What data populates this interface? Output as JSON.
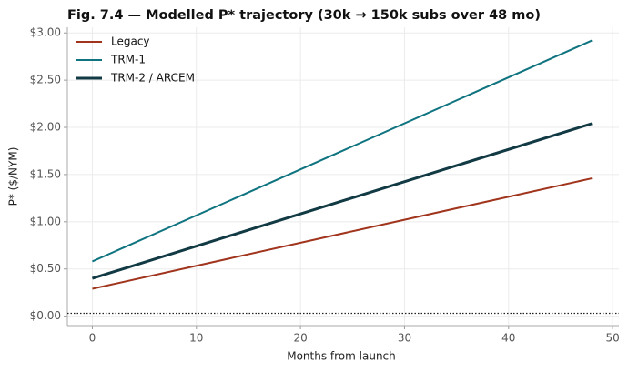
{
  "chart_data": {
    "type": "line",
    "title": "Fig. 7.4 — Modelled P* trajectory (30k → 150k subs over 48 mo)",
    "x_label": "Months from launch",
    "y_label": "P*  ($/NYM)",
    "x": [
      0,
      48
    ],
    "series": [
      {
        "name": "Legacy",
        "color": "#a0341c",
        "values": [
          0.29,
          1.46
        ]
      },
      {
        "name": "TRM-1",
        "color": "#0f7480",
        "values": [
          0.58,
          2.92
        ]
      },
      {
        "name": "TRM-2 / ARCEM",
        "color": "#123a44",
        "values": [
          0.4,
          2.04
        ]
      }
    ],
    "reference_line": 0.03,
    "xlim": [
      -2.4,
      50.6
    ],
    "ylim": [
      -0.1,
      3.06
    ],
    "xticks": [
      0,
      10,
      20,
      30,
      40,
      50
    ],
    "yticks": [
      {
        "value": 0,
        "label": "$0.00"
      },
      {
        "value": 0.5,
        "label": "$0.50"
      },
      {
        "value": 1,
        "label": "$1.00"
      },
      {
        "value": 1.5,
        "label": "$1.50"
      },
      {
        "value": 2,
        "label": "$2.00"
      },
      {
        "value": 2.5,
        "label": "$2.50"
      },
      {
        "value": 3,
        "label": "$3.00"
      }
    ],
    "grid": true,
    "legend": "upper-left"
  }
}
